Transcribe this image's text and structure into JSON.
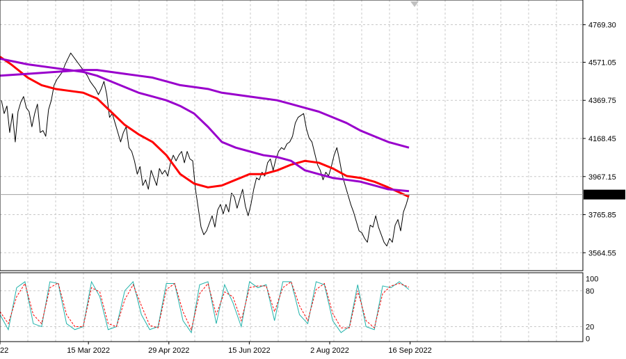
{
  "chart_data": {
    "type": "line",
    "main_panel": {
      "y_ticks": [
        "4769.30",
        "4571.05",
        "4369.75",
        "4168.45",
        "3967.15",
        "3765.85",
        "3564.55"
      ],
      "ylim": [
        3470,
        4900
      ],
      "current_price": "3871.98",
      "grid": true,
      "series": [
        {
          "kind": "price",
          "color": "#000000",
          "x": [
            1,
            3,
            5,
            7,
            9,
            11,
            13,
            15,
            17,
            19,
            21,
            23,
            25,
            27,
            29,
            31,
            33,
            35,
            37,
            39,
            41,
            43,
            45,
            47,
            49,
            51,
            53,
            55,
            57,
            59,
            61,
            63,
            65,
            67,
            69,
            71,
            73,
            75,
            77,
            79,
            81,
            83,
            85,
            87,
            89,
            91,
            93,
            95,
            97,
            99,
            101,
            103,
            105,
            107,
            109,
            111,
            113,
            115,
            117,
            119,
            121,
            123,
            125,
            127,
            129,
            131,
            133,
            135,
            137,
            139,
            141,
            143,
            145,
            147,
            149,
            151,
            153,
            155,
            157,
            159,
            161,
            163,
            165,
            167,
            169,
            171,
            173,
            175,
            177,
            179,
            181,
            183,
            185,
            187,
            189,
            191,
            193,
            195,
            197,
            199,
            201,
            203,
            205,
            207,
            209,
            211,
            213,
            215,
            217,
            219,
            221,
            223,
            225,
            227,
            229,
            231,
            233,
            235,
            237,
            239,
            241,
            243,
            245,
            247,
            249,
            251,
            253,
            255,
            257,
            259,
            261,
            263,
            265,
            267,
            269,
            271,
            273,
            275,
            277,
            279,
            281,
            283,
            285,
            287,
            289,
            291,
            293,
            295
          ],
          "values": [
            4370,
            4300,
            4340,
            4200,
            4300,
            4150,
            4310,
            4360,
            4390,
            4330,
            4310,
            4230,
            4300,
            4350,
            4200,
            4210,
            4180,
            4320,
            4370,
            4450,
            4480,
            4500,
            4520,
            4560,
            4590,
            4620,
            4600,
            4580,
            4560,
            4540,
            4520,
            4500,
            4470,
            4450,
            4430,
            4400,
            4430,
            4470,
            4400,
            4280,
            4300,
            4250,
            4200,
            4150,
            4200,
            4230,
            4120,
            4100,
            4050,
            3980,
            4020,
            3920,
            3950,
            3900,
            4000,
            3960,
            3920,
            4010,
            3980,
            4000,
            3970,
            4040,
            4080,
            4050,
            4080,
            4100,
            4040,
            4100,
            4060,
            4050,
            3900,
            3800,
            3700,
            3660,
            3680,
            3720,
            3760,
            3700,
            3790,
            3820,
            3770,
            3820,
            3780,
            3880,
            3860,
            3800,
            3850,
            3900,
            3810,
            3760,
            3820,
            3900,
            3960,
            3950,
            3990,
            3970,
            4040,
            4060,
            4000,
            4060,
            4100,
            4120,
            4110,
            4140,
            4150,
            4180,
            4250,
            4280,
            4290,
            4300,
            4220,
            4170,
            4150,
            4090,
            4030,
            4000,
            3950,
            3990,
            3970,
            4020,
            4080,
            4120,
            4050,
            3970,
            3920,
            3870,
            3820,
            3780,
            3730,
            3680,
            3670,
            3640,
            3620,
            3710,
            3700,
            3760,
            3700,
            3660,
            3620,
            3600,
            3640,
            3620,
            3710,
            3740,
            3680,
            3780,
            3820,
            3870
          ]
        },
        {
          "kind": "moving-average",
          "color": "#ff0000",
          "x": [
            0,
            8,
            20,
            30,
            40,
            50,
            60,
            70,
            80,
            90,
            100,
            110,
            120,
            130,
            140,
            150,
            160,
            170,
            180,
            190,
            200,
            210,
            220,
            230,
            240,
            250,
            260,
            270,
            280,
            295
          ],
          "values": [
            4600,
            4560,
            4490,
            4450,
            4430,
            4420,
            4410,
            4380,
            4310,
            4240,
            4190,
            4150,
            4080,
            3980,
            3930,
            3910,
            3920,
            3950,
            3980,
            3980,
            4000,
            4030,
            4050,
            4040,
            4010,
            3970,
            3960,
            3940,
            3910,
            3860
          ]
        },
        {
          "kind": "moving-average",
          "color": "#9900cc",
          "x": [
            0,
            20,
            40,
            60,
            70,
            80,
            90,
            100,
            110,
            120,
            130,
            140,
            150,
            160,
            170,
            180,
            190,
            200,
            210,
            220,
            230,
            240,
            250,
            260,
            270,
            280,
            295
          ],
          "values": [
            4590,
            4560,
            4540,
            4520,
            4500,
            4470,
            4440,
            4410,
            4390,
            4370,
            4340,
            4300,
            4230,
            4150,
            4120,
            4100,
            4080,
            4070,
            4050,
            4000,
            3980,
            3960,
            3950,
            3940,
            3920,
            3900,
            3890
          ]
        },
        {
          "kind": "moving-average",
          "color": "#9900cc",
          "x": [
            0,
            20,
            40,
            60,
            70,
            80,
            90,
            100,
            110,
            120,
            130,
            140,
            150,
            160,
            170,
            180,
            190,
            200,
            210,
            220,
            230,
            240,
            250,
            260,
            270,
            280,
            295
          ],
          "values": [
            4500,
            4510,
            4520,
            4530,
            4530,
            4520,
            4510,
            4500,
            4490,
            4470,
            4450,
            4440,
            4430,
            4410,
            4400,
            4390,
            4380,
            4370,
            4350,
            4330,
            4310,
            4280,
            4250,
            4210,
            4180,
            4150,
            4120
          ]
        }
      ]
    },
    "oscillator_panel": {
      "y_ticks": [
        "100",
        "80",
        "20",
        "0"
      ],
      "ylim": [
        -5,
        110
      ],
      "series": [
        {
          "kind": "main-line",
          "color": "#20b2aa",
          "x": [
            0,
            6,
            12,
            18,
            24,
            30,
            36,
            42,
            48,
            54,
            60,
            66,
            72,
            78,
            84,
            90,
            96,
            102,
            108,
            114,
            120,
            126,
            132,
            138,
            144,
            150,
            156,
            162,
            168,
            174,
            180,
            186,
            192,
            198,
            204,
            210,
            216,
            222,
            228,
            234,
            240,
            246,
            252,
            258,
            264,
            270,
            276,
            282,
            288,
            295
          ],
          "values": [
            40,
            15,
            85,
            95,
            25,
            20,
            95,
            92,
            25,
            15,
            20,
            95,
            70,
            15,
            20,
            80,
            95,
            40,
            15,
            20,
            92,
            92,
            30,
            10,
            90,
            95,
            25,
            90,
            60,
            20,
            95,
            85,
            90,
            30,
            95,
            95,
            40,
            25,
            95,
            90,
            30,
            10,
            20,
            90,
            20,
            15,
            88,
            85,
            95,
            82
          ]
        },
        {
          "kind": "signal-line",
          "color": "#ff0000",
          "x": [
            0,
            6,
            12,
            18,
            24,
            30,
            36,
            42,
            48,
            54,
            60,
            66,
            72,
            78,
            84,
            90,
            96,
            102,
            108,
            114,
            120,
            126,
            132,
            138,
            144,
            150,
            156,
            162,
            168,
            174,
            180,
            186,
            192,
            198,
            204,
            210,
            216,
            222,
            228,
            234,
            240,
            246,
            252,
            258,
            264,
            270,
            276,
            282,
            288,
            295
          ],
          "values": [
            45,
            25,
            70,
            92,
            40,
            25,
            85,
            93,
            40,
            20,
            20,
            85,
            78,
            25,
            20,
            65,
            90,
            55,
            22,
            18,
            82,
            92,
            45,
            15,
            75,
            92,
            40,
            78,
            70,
            30,
            85,
            88,
            88,
            45,
            85,
            95,
            55,
            30,
            82,
            92,
            42,
            18,
            18,
            80,
            30,
            18,
            75,
            88,
            92,
            86
          ]
        }
      ]
    },
    "x_ticks": [
      "22",
      "15 Mar 2022",
      "29 Apr 2022",
      "15 Jun 2022",
      "2 Aug 2022",
      "16 Sep 2022"
    ],
    "x_tick_positions": [
      0,
      44,
      84,
      124,
      164,
      204
    ]
  }
}
